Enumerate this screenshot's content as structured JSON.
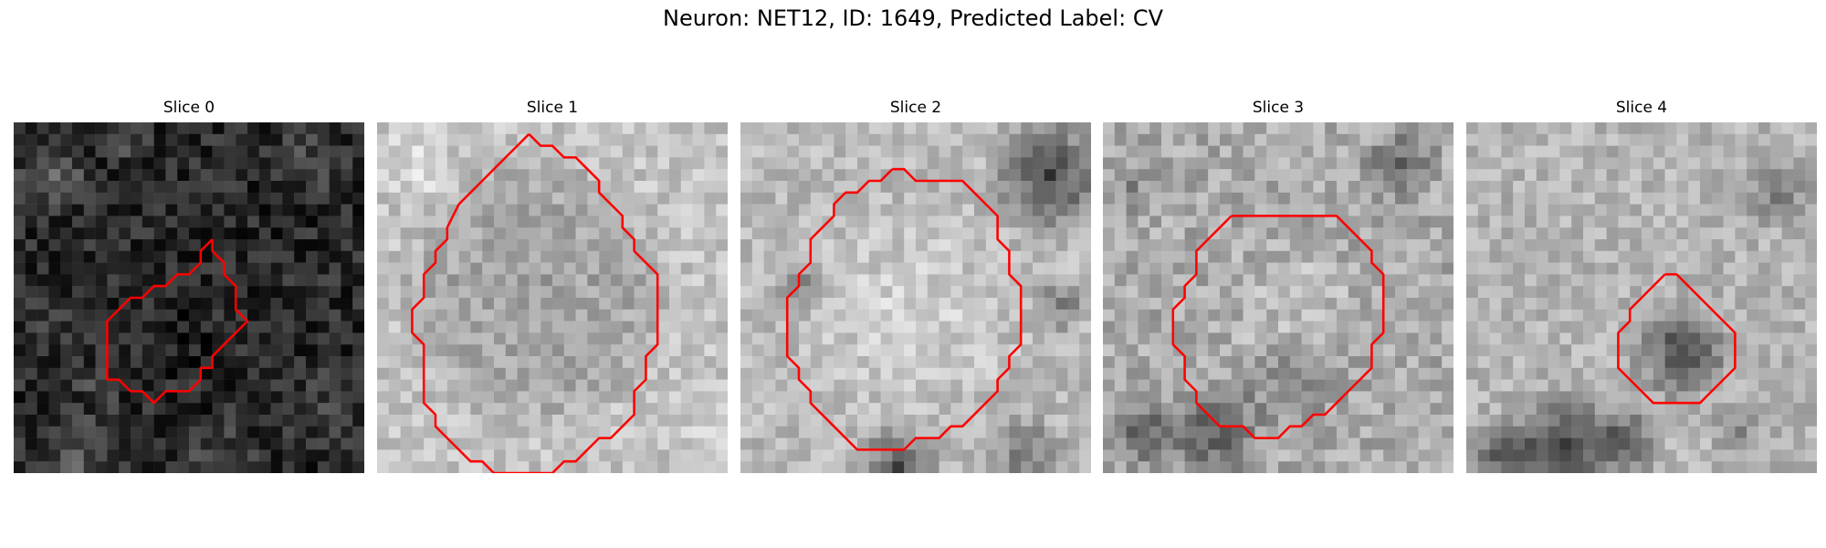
{
  "figure": {
    "title": "Neuron: NET12, ID: 1649, Predicted Label: CV"
  },
  "panels": [
    {
      "title": "Slice 0",
      "base": 40,
      "spread": 70,
      "contour": [
        [
          17,
          10
        ],
        [
          17,
          11
        ],
        [
          18,
          12
        ],
        [
          18,
          13
        ],
        [
          19,
          14
        ],
        [
          19,
          16
        ],
        [
          20,
          17
        ],
        [
          19,
          18
        ],
        [
          18,
          19
        ],
        [
          17,
          20
        ],
        [
          17,
          21
        ],
        [
          16,
          21
        ],
        [
          16,
          22
        ],
        [
          15,
          23
        ],
        [
          14,
          23
        ],
        [
          13,
          23
        ],
        [
          12,
          24
        ],
        [
          11,
          23
        ],
        [
          10,
          23
        ],
        [
          9,
          22
        ],
        [
          8,
          22
        ],
        [
          8,
          21
        ],
        [
          8,
          20
        ],
        [
          8,
          18
        ],
        [
          8,
          17
        ],
        [
          9,
          16
        ],
        [
          10,
          15
        ],
        [
          11,
          15
        ],
        [
          12,
          14
        ],
        [
          13,
          14
        ],
        [
          14,
          13
        ],
        [
          15,
          13
        ],
        [
          16,
          12
        ],
        [
          16,
          11
        ],
        [
          17,
          10
        ]
      ],
      "blobs": [
        {
          "cx": 3,
          "cy": 4,
          "r": 4,
          "v": 60
        },
        {
          "cx": 9,
          "cy": 1,
          "r": 3,
          "v": 40
        },
        {
          "cx": 25,
          "cy": 3,
          "r": 4,
          "v": 35
        },
        {
          "cx": 2,
          "cy": 17,
          "r": 3,
          "v": 30
        },
        {
          "cx": 6,
          "cy": 22,
          "r": 4,
          "v": 20
        },
        {
          "cx": 5,
          "cy": 28,
          "r": 4,
          "v": 55
        },
        {
          "cx": 17,
          "cy": 28,
          "r": 4,
          "v": 35
        },
        {
          "cx": 26,
          "cy": 24,
          "r": 4,
          "v": 30
        },
        {
          "cx": 14,
          "cy": 18,
          "r": 4,
          "v": -15
        }
      ]
    },
    {
      "title": "Slice 1",
      "base": 195,
      "spread": 55,
      "contour": [
        [
          13,
          1
        ],
        [
          14,
          2
        ],
        [
          15,
          2
        ],
        [
          16,
          3
        ],
        [
          17,
          3
        ],
        [
          18,
          4
        ],
        [
          19,
          5
        ],
        [
          19,
          6
        ],
        [
          20,
          7
        ],
        [
          21,
          8
        ],
        [
          21,
          9
        ],
        [
          22,
          10
        ],
        [
          22,
          11
        ],
        [
          23,
          12
        ],
        [
          24,
          13
        ],
        [
          24,
          14
        ],
        [
          24,
          16
        ],
        [
          24,
          18
        ],
        [
          24,
          19
        ],
        [
          23,
          20
        ],
        [
          23,
          21
        ],
        [
          23,
          22
        ],
        [
          22,
          23
        ],
        [
          22,
          25
        ],
        [
          21,
          26
        ],
        [
          20,
          27
        ],
        [
          19,
          27
        ],
        [
          18,
          28
        ],
        [
          17,
          29
        ],
        [
          16,
          29
        ],
        [
          15,
          30
        ],
        [
          14,
          30
        ],
        [
          12,
          30
        ],
        [
          11,
          30
        ],
        [
          10,
          30
        ],
        [
          9,
          29
        ],
        [
          8,
          29
        ],
        [
          7,
          28
        ],
        [
          6,
          27
        ],
        [
          5,
          26
        ],
        [
          5,
          25
        ],
        [
          4,
          24
        ],
        [
          4,
          22
        ],
        [
          4,
          20
        ],
        [
          4,
          19
        ],
        [
          3,
          18
        ],
        [
          3,
          16
        ],
        [
          4,
          15
        ],
        [
          4,
          13
        ],
        [
          5,
          12
        ],
        [
          5,
          11
        ],
        [
          6,
          10
        ],
        [
          6,
          9
        ],
        [
          7,
          7
        ],
        [
          8,
          6
        ],
        [
          9,
          5
        ],
        [
          10,
          4
        ],
        [
          11,
          3
        ],
        [
          12,
          2
        ],
        [
          13,
          1
        ]
      ],
      "blobs": [
        {
          "cx": 13,
          "cy": 14,
          "r": 12.5,
          "v": -95
        },
        {
          "cx": 13,
          "cy": 14,
          "r": 9,
          "v": 60
        },
        {
          "cx": 3,
          "cy": 3,
          "r": 4,
          "v": 30
        },
        {
          "cx": 28,
          "cy": 26,
          "r": 3,
          "v": 20
        }
      ]
    },
    {
      "title": "Slice 2",
      "base": 185,
      "spread": 55,
      "contour": [
        [
          13,
          4
        ],
        [
          14,
          4
        ],
        [
          15,
          5
        ],
        [
          16,
          5
        ],
        [
          17,
          5
        ],
        [
          18,
          5
        ],
        [
          19,
          5
        ],
        [
          20,
          6
        ],
        [
          21,
          7
        ],
        [
          22,
          8
        ],
        [
          22,
          9
        ],
        [
          22,
          10
        ],
        [
          23,
          11
        ],
        [
          23,
          12
        ],
        [
          23,
          13
        ],
        [
          24,
          14
        ],
        [
          24,
          15
        ],
        [
          24,
          16
        ],
        [
          24,
          17
        ],
        [
          24,
          18
        ],
        [
          24,
          19
        ],
        [
          23,
          20
        ],
        [
          23,
          21
        ],
        [
          22,
          22
        ],
        [
          22,
          23
        ],
        [
          21,
          24
        ],
        [
          20,
          25
        ],
        [
          19,
          26
        ],
        [
          18,
          26
        ],
        [
          17,
          27
        ],
        [
          16,
          27
        ],
        [
          15,
          27
        ],
        [
          14,
          28
        ],
        [
          13,
          28
        ],
        [
          12,
          28
        ],
        [
          11,
          28
        ],
        [
          10,
          28
        ],
        [
          9,
          27
        ],
        [
          8,
          26
        ],
        [
          7,
          25
        ],
        [
          6,
          24
        ],
        [
          6,
          23
        ],
        [
          5,
          22
        ],
        [
          5,
          21
        ],
        [
          4,
          20
        ],
        [
          4,
          19
        ],
        [
          4,
          18
        ],
        [
          4,
          17
        ],
        [
          4,
          16
        ],
        [
          4,
          15
        ],
        [
          5,
          14
        ],
        [
          5,
          13
        ],
        [
          6,
          12
        ],
        [
          6,
          11
        ],
        [
          6,
          10
        ],
        [
          7,
          9
        ],
        [
          8,
          8
        ],
        [
          8,
          7
        ],
        [
          9,
          6
        ],
        [
          10,
          6
        ],
        [
          11,
          5
        ],
        [
          12,
          5
        ],
        [
          13,
          4
        ]
      ],
      "blobs": [
        {
          "cx": 14,
          "cy": 16,
          "r": 11,
          "v": 30
        },
        {
          "cx": 26,
          "cy": 4,
          "r": 6,
          "v": -120
        },
        {
          "cx": 13,
          "cy": 29,
          "r": 4,
          "v": -110
        },
        {
          "cx": 24,
          "cy": 28,
          "r": 4,
          "v": -70
        },
        {
          "cx": 5,
          "cy": 13,
          "r": 3,
          "v": -50
        },
        {
          "cx": 27,
          "cy": 15,
          "r": 3,
          "v": -60
        }
      ]
    },
    {
      "title": "Slice 3",
      "base": 170,
      "spread": 65,
      "contour": [
        [
          11,
          8
        ],
        [
          12,
          8
        ],
        [
          13,
          8
        ],
        [
          14,
          8
        ],
        [
          15,
          8
        ],
        [
          16,
          8
        ],
        [
          17,
          8
        ],
        [
          18,
          8
        ],
        [
          19,
          8
        ],
        [
          20,
          8
        ],
        [
          21,
          9
        ],
        [
          22,
          10
        ],
        [
          23,
          11
        ],
        [
          23,
          12
        ],
        [
          24,
          13
        ],
        [
          24,
          14
        ],
        [
          24,
          15
        ],
        [
          24,
          16
        ],
        [
          24,
          17
        ],
        [
          24,
          18
        ],
        [
          23,
          19
        ],
        [
          23,
          20
        ],
        [
          23,
          21
        ],
        [
          22,
          22
        ],
        [
          21,
          23
        ],
        [
          20,
          24
        ],
        [
          19,
          25
        ],
        [
          18,
          25
        ],
        [
          17,
          26
        ],
        [
          16,
          26
        ],
        [
          15,
          27
        ],
        [
          14,
          27
        ],
        [
          13,
          27
        ],
        [
          12,
          26
        ],
        [
          11,
          26
        ],
        [
          10,
          26
        ],
        [
          9,
          25
        ],
        [
          8,
          24
        ],
        [
          8,
          23
        ],
        [
          7,
          22
        ],
        [
          7,
          21
        ],
        [
          7,
          20
        ],
        [
          6,
          19
        ],
        [
          6,
          18
        ],
        [
          6,
          17
        ],
        [
          6,
          16
        ],
        [
          7,
          15
        ],
        [
          7,
          14
        ],
        [
          8,
          13
        ],
        [
          8,
          12
        ],
        [
          8,
          11
        ],
        [
          9,
          10
        ],
        [
          10,
          9
        ],
        [
          11,
          8
        ]
      ],
      "blobs": [
        {
          "cx": 16,
          "cy": 15,
          "r": 7,
          "v": 25
        },
        {
          "cx": 9,
          "cy": 26,
          "r": 5,
          "v": -80
        },
        {
          "cx": 3,
          "cy": 26,
          "r": 4,
          "v": -80
        },
        {
          "cx": 25,
          "cy": 3,
          "r": 4,
          "v": -60
        },
        {
          "cx": 15,
          "cy": 22,
          "r": 5,
          "v": -40
        },
        {
          "cx": 2,
          "cy": 5,
          "r": 3,
          "v": -30
        }
      ]
    },
    {
      "title": "Slice 4",
      "base": 180,
      "spread": 55,
      "contour": [
        [
          17,
          13
        ],
        [
          18,
          13
        ],
        [
          19,
          14
        ],
        [
          20,
          15
        ],
        [
          21,
          16
        ],
        [
          22,
          17
        ],
        [
          23,
          18
        ],
        [
          23,
          19
        ],
        [
          23,
          20
        ],
        [
          23,
          21
        ],
        [
          22,
          22
        ],
        [
          21,
          23
        ],
        [
          20,
          24
        ],
        [
          18,
          24
        ],
        [
          17,
          24
        ],
        [
          16,
          24
        ],
        [
          15,
          23
        ],
        [
          14,
          22
        ],
        [
          13,
          21
        ],
        [
          13,
          20
        ],
        [
          13,
          19
        ],
        [
          13,
          18
        ],
        [
          14,
          17
        ],
        [
          14,
          16
        ],
        [
          15,
          15
        ],
        [
          16,
          14
        ],
        [
          17,
          13
        ]
      ],
      "blobs": [
        {
          "cx": 18,
          "cy": 19,
          "r": 5,
          "v": -110
        },
        {
          "cx": 8,
          "cy": 27,
          "r": 5,
          "v": -120
        },
        {
          "cx": 3,
          "cy": 28,
          "r": 4,
          "v": -110
        },
        {
          "cx": 13,
          "cy": 27,
          "r": 4,
          "v": -90
        },
        {
          "cx": 26,
          "cy": 5,
          "r": 4,
          "v": -60
        },
        {
          "cx": 23,
          "cy": 26,
          "r": 3,
          "v": -40
        }
      ]
    }
  ]
}
